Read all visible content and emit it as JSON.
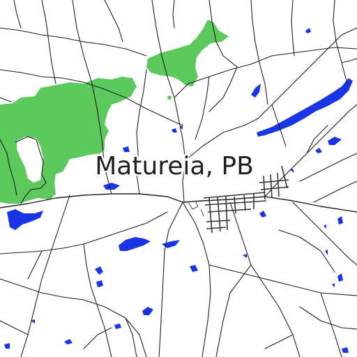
{
  "map": {
    "place_label": "Matureia, PB",
    "colors": {
      "background": "#ffffff",
      "road": "#1e1e1e",
      "water": "#1a35e6",
      "forest": "#5cc95c"
    }
  }
}
